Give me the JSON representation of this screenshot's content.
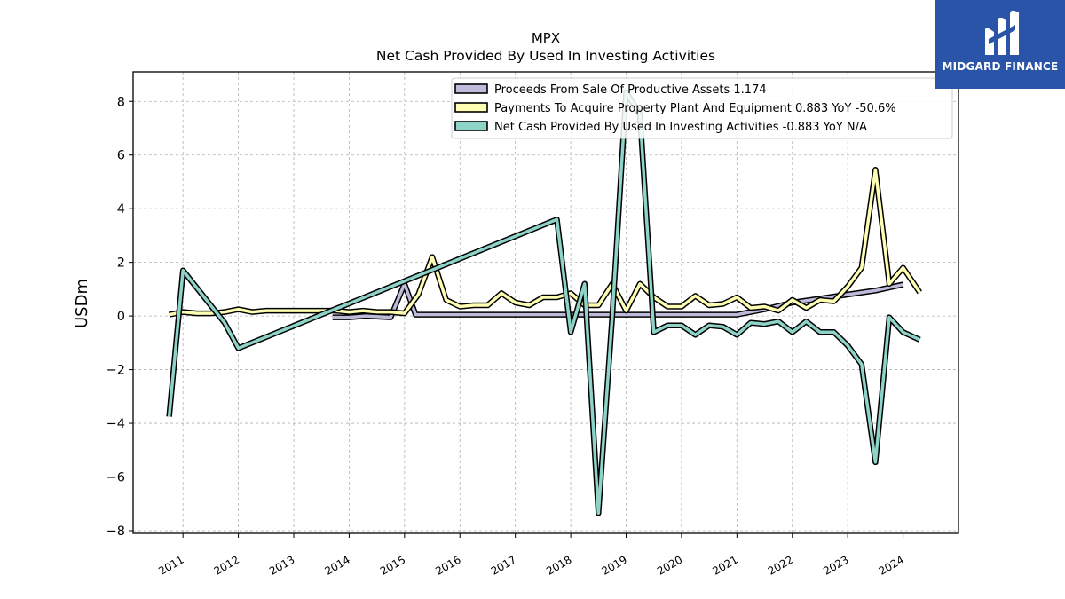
{
  "logo": {
    "text": "MIDGARD FINANCE",
    "icon": "midgard-m-logo-icon",
    "background": "#2a54a8"
  },
  "chart_data": {
    "type": "line",
    "title": "MPX",
    "subtitle": "Net Cash Provided By Used In Investing Activities",
    "ylabel": "USDm",
    "xlabel": "",
    "ylim": [
      -8.1,
      9.1
    ],
    "xlim": [
      2010.1,
      2025.0
    ],
    "yticks": [
      -8,
      -6,
      -4,
      -2,
      0,
      2,
      4,
      6,
      8
    ],
    "xticks": [
      "2011",
      "2012",
      "2013",
      "2014",
      "2015",
      "2016",
      "2017",
      "2018",
      "2019",
      "2020",
      "2021",
      "2022",
      "2023",
      "2024"
    ],
    "grid": true,
    "legend_position": "top-right",
    "series": [
      {
        "name": "Proceeds From Sale Of Productive Assets",
        "legend": "Proceeds From Sale Of Productive Assets  1.174",
        "color": "#bebada",
        "x": [
          2013.7,
          2014.0,
          2014.3,
          2014.75,
          2015.0,
          2015.2,
          2015.5,
          2016.0,
          2016.5,
          2017.0,
          2017.5,
          2018.0,
          2018.5,
          2019.0,
          2019.5,
          2020.0,
          2020.5,
          2021.0,
          2021.5,
          2022.0,
          2022.5,
          2023.0,
          2023.5,
          2024.0
        ],
        "y": [
          -0.05,
          -0.05,
          0.0,
          -0.05,
          1.2,
          0.05,
          0.05,
          0.05,
          0.05,
          0.05,
          0.05,
          0.05,
          0.05,
          0.05,
          0.05,
          0.05,
          0.05,
          0.05,
          0.25,
          0.5,
          0.65,
          0.8,
          0.95,
          1.174
        ]
      },
      {
        "name": "Payments To Acquire Property Plant And Equipment",
        "legend": "Payments To Acquire Property Plant And Equipment  0.883 YoY -50.6%",
        "color": "#ffffb3",
        "x": [
          2010.75,
          2011.0,
          2011.25,
          2011.5,
          2011.75,
          2012.0,
          2012.25,
          2012.5,
          2012.75,
          2013.0,
          2013.25,
          2013.5,
          2013.75,
          2014.0,
          2014.25,
          2014.5,
          2014.75,
          2015.0,
          2015.25,
          2015.5,
          2015.75,
          2016.0,
          2016.25,
          2016.5,
          2016.75,
          2017.0,
          2017.25,
          2017.5,
          2017.75,
          2018.0,
          2018.25,
          2018.5,
          2018.75,
          2019.0,
          2019.25,
          2019.5,
          2019.75,
          2020.0,
          2020.25,
          2020.5,
          2020.75,
          2021.0,
          2021.25,
          2021.5,
          2021.75,
          2022.0,
          2022.25,
          2022.5,
          2022.75,
          2023.0,
          2023.25,
          2023.5,
          2023.75,
          2024.0,
          2024.3
        ],
        "y": [
          0.05,
          0.15,
          0.1,
          0.1,
          0.15,
          0.25,
          0.15,
          0.2,
          0.2,
          0.2,
          0.2,
          0.2,
          0.2,
          0.15,
          0.2,
          0.15,
          0.15,
          0.1,
          0.8,
          2.2,
          0.6,
          0.35,
          0.4,
          0.4,
          0.85,
          0.5,
          0.4,
          0.7,
          0.7,
          0.85,
          0.4,
          0.4,
          1.2,
          0.2,
          1.2,
          0.7,
          0.35,
          0.35,
          0.75,
          0.4,
          0.45,
          0.7,
          0.3,
          0.35,
          0.2,
          0.6,
          0.3,
          0.6,
          0.55,
          1.1,
          1.8,
          5.45,
          1.2,
          1.8,
          0.883
        ]
      },
      {
        "name": "Net Cash Provided By Used In Investing Activities",
        "legend": "Net Cash Provided By Used In Investing Activities  -0.883 YoY N/A",
        "color": "#8dd3c7",
        "x": [
          2010.75,
          2011.0,
          2011.75,
          2012.0,
          2017.75,
          2018.0,
          2018.25,
          2018.5,
          2018.75,
          2019.0,
          2019.25,
          2019.5,
          2019.75,
          2020.0,
          2020.25,
          2020.5,
          2020.75,
          2021.0,
          2021.25,
          2021.5,
          2021.75,
          2022.0,
          2022.25,
          2022.5,
          2022.75,
          2023.0,
          2023.25,
          2023.5,
          2023.75,
          2024.0,
          2024.3
        ],
        "y": [
          -3.75,
          1.7,
          -0.25,
          -1.2,
          3.6,
          -0.6,
          1.2,
          -7.35,
          0.0,
          8.35,
          7.5,
          -0.6,
          -0.35,
          -0.35,
          -0.7,
          -0.35,
          -0.4,
          -0.7,
          -0.25,
          -0.3,
          -0.2,
          -0.6,
          -0.2,
          -0.6,
          -0.6,
          -1.1,
          -1.8,
          -5.45,
          -0.05,
          -0.6,
          -0.883
        ]
      }
    ]
  }
}
